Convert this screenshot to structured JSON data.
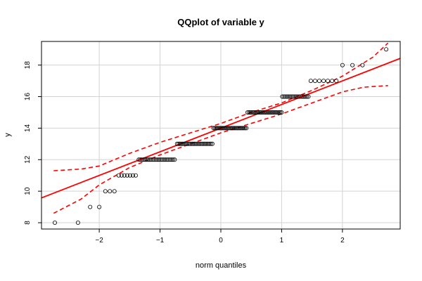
{
  "chart_data": {
    "type": "scatter",
    "title": "QQplot of variable y",
    "xlabel": "norm quantiles",
    "ylabel": "y",
    "xlim": [
      -2.95,
      2.95
    ],
    "ylim": [
      7.6,
      19.5
    ],
    "xticks": [
      -2,
      -1,
      0,
      1,
      2
    ],
    "yticks": [
      8,
      10,
      12,
      14,
      16,
      18
    ],
    "grid": true,
    "colors": {
      "points": "#000000",
      "fit_line": "#ff0000",
      "band": "#ff0000",
      "grid": "#d3d3d3"
    },
    "groups": [
      {
        "y": 8,
        "x_min": -2.73,
        "x_max": -2.35,
        "count": 2
      },
      {
        "y": 9,
        "x_min": -2.15,
        "x_max": -2.0,
        "count": 2
      },
      {
        "y": 10,
        "x_min": -1.9,
        "x_max": -1.75,
        "count": 3
      },
      {
        "y": 11,
        "x_min": -1.68,
        "x_max": -1.4,
        "count": 7
      },
      {
        "y": 12,
        "x_min": -1.35,
        "x_max": -0.76,
        "count": 24
      },
      {
        "y": 13,
        "x_min": -0.72,
        "x_max": -0.14,
        "count": 25
      },
      {
        "y": 14,
        "x_min": -0.12,
        "x_max": 0.42,
        "count": 26
      },
      {
        "y": 15,
        "x_min": 0.44,
        "x_max": 1.0,
        "count": 26
      },
      {
        "y": 16,
        "x_min": 1.01,
        "x_max": 1.44,
        "count": 18
      },
      {
        "y": 17,
        "x_min": 1.48,
        "x_max": 1.9,
        "count": 7
      },
      {
        "y": 18,
        "x_min": 2.0,
        "x_max": 2.33,
        "count": 3
      },
      {
        "y": 19,
        "x_min": 2.72,
        "x_max": 2.72,
        "count": 1
      }
    ],
    "fit_line": {
      "intercept": 14.0,
      "slope": 1.5
    },
    "band_upper": [
      [
        -2.75,
        11.3
      ],
      [
        -2.3,
        11.4
      ],
      [
        -2.0,
        11.6
      ],
      [
        -1.5,
        12.4
      ],
      [
        -1.0,
        13.1
      ],
      [
        -0.5,
        13.7
      ],
      [
        0.0,
        14.3
      ],
      [
        0.5,
        15.0
      ],
      [
        1.0,
        15.6
      ],
      [
        1.5,
        16.4
      ],
      [
        2.0,
        17.3
      ],
      [
        2.5,
        18.5
      ],
      [
        2.75,
        19.4
      ]
    ],
    "band_lower": [
      [
        -2.75,
        8.6
      ],
      [
        -2.3,
        9.5
      ],
      [
        -2.0,
        10.4
      ],
      [
        -1.5,
        11.5
      ],
      [
        -1.0,
        12.3
      ],
      [
        -0.5,
        13.0
      ],
      [
        0.0,
        13.7
      ],
      [
        0.5,
        14.3
      ],
      [
        1.0,
        14.9
      ],
      [
        1.5,
        15.6
      ],
      [
        2.0,
        16.3
      ],
      [
        2.35,
        16.6
      ],
      [
        2.75,
        16.7
      ]
    ]
  }
}
